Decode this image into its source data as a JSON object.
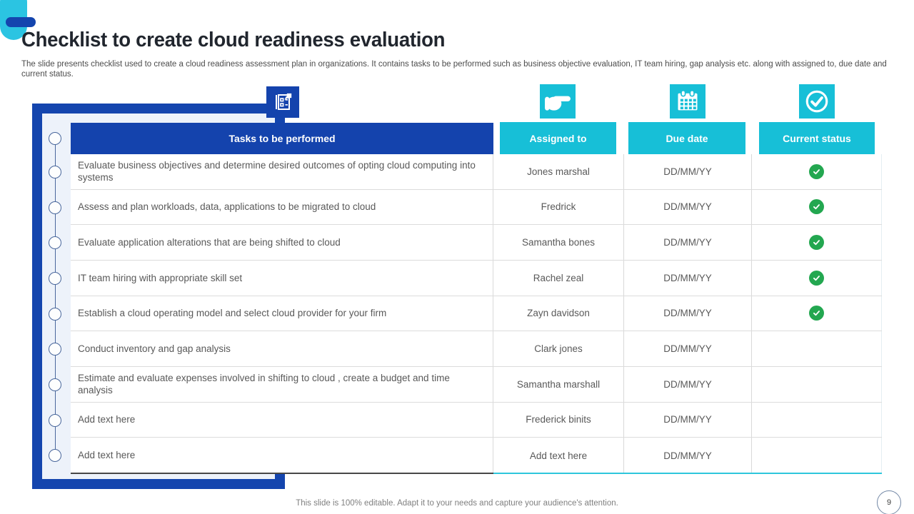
{
  "slide": {
    "title": "Checklist to create cloud readiness evaluation",
    "subtitle": "The slide presents checklist used to create a cloud readiness assessment plan in organizations. It contains tasks to be performed such as business objective evaluation, IT team hiring, gap analysis etc. along with assigned to, due date and current status.",
    "footer_note": "This slide is 100% editable. Adapt it to your needs and capture your audience's attention.",
    "page_number": "9"
  },
  "table": {
    "columns": [
      {
        "label": "Tasks to be performed",
        "icon": "clipboard-pencil-icon"
      },
      {
        "label": "Assigned to",
        "icon": "pointing-hand-icon"
      },
      {
        "label": "Due date",
        "icon": "calendar-icon"
      },
      {
        "label": "Current status",
        "icon": "check-circle-icon"
      }
    ],
    "rows": [
      {
        "task": "Evaluate business objectives and determine desired outcomes of opting cloud computing into systems",
        "assigned_to": "Jones marshal",
        "due_date": "DD/MM/YY",
        "status_done": true
      },
      {
        "task": "Assess and plan workloads, data, applications to be migrated to cloud",
        "assigned_to": "Fredrick",
        "due_date": "DD/MM/YY",
        "status_done": true
      },
      {
        "task": "Evaluate application alterations that are being shifted to cloud",
        "assigned_to": "Samantha bones",
        "due_date": "DD/MM/YY",
        "status_done": true
      },
      {
        "task": "IT team hiring with appropriate skill set",
        "assigned_to": "Rachel zeal",
        "due_date": "DD/MM/YY",
        "status_done": true
      },
      {
        "task": "Establish a cloud operating model and select cloud provider for your firm",
        "assigned_to": "Zayn davidson",
        "due_date": "DD/MM/YY",
        "status_done": true
      },
      {
        "task": "Conduct inventory and gap analysis",
        "assigned_to": "Clark jones",
        "due_date": "DD/MM/YY",
        "status_done": false
      },
      {
        "task": "Estimate and evaluate expenses involved in shifting to cloud , create a budget and time analysis",
        "assigned_to": "Samantha marshall",
        "due_date": "DD/MM/YY",
        "status_done": false
      },
      {
        "task": "Add text here",
        "assigned_to": "Frederick binits",
        "due_date": "DD/MM/YY",
        "status_done": false
      },
      {
        "task": "Add text here",
        "assigned_to": "Add text here",
        "due_date": "DD/MM/YY",
        "status_done": false
      }
    ]
  },
  "colors": {
    "accent_blue": "#1443ad",
    "accent_cyan": "#17bfd7",
    "corner_cyan": "#2bc4e2",
    "status_green": "#23a750",
    "frame_fill": "#edf2fa",
    "title_text": "#21262e",
    "body_text": "#595959",
    "footer_text": "#7f7f7f"
  }
}
